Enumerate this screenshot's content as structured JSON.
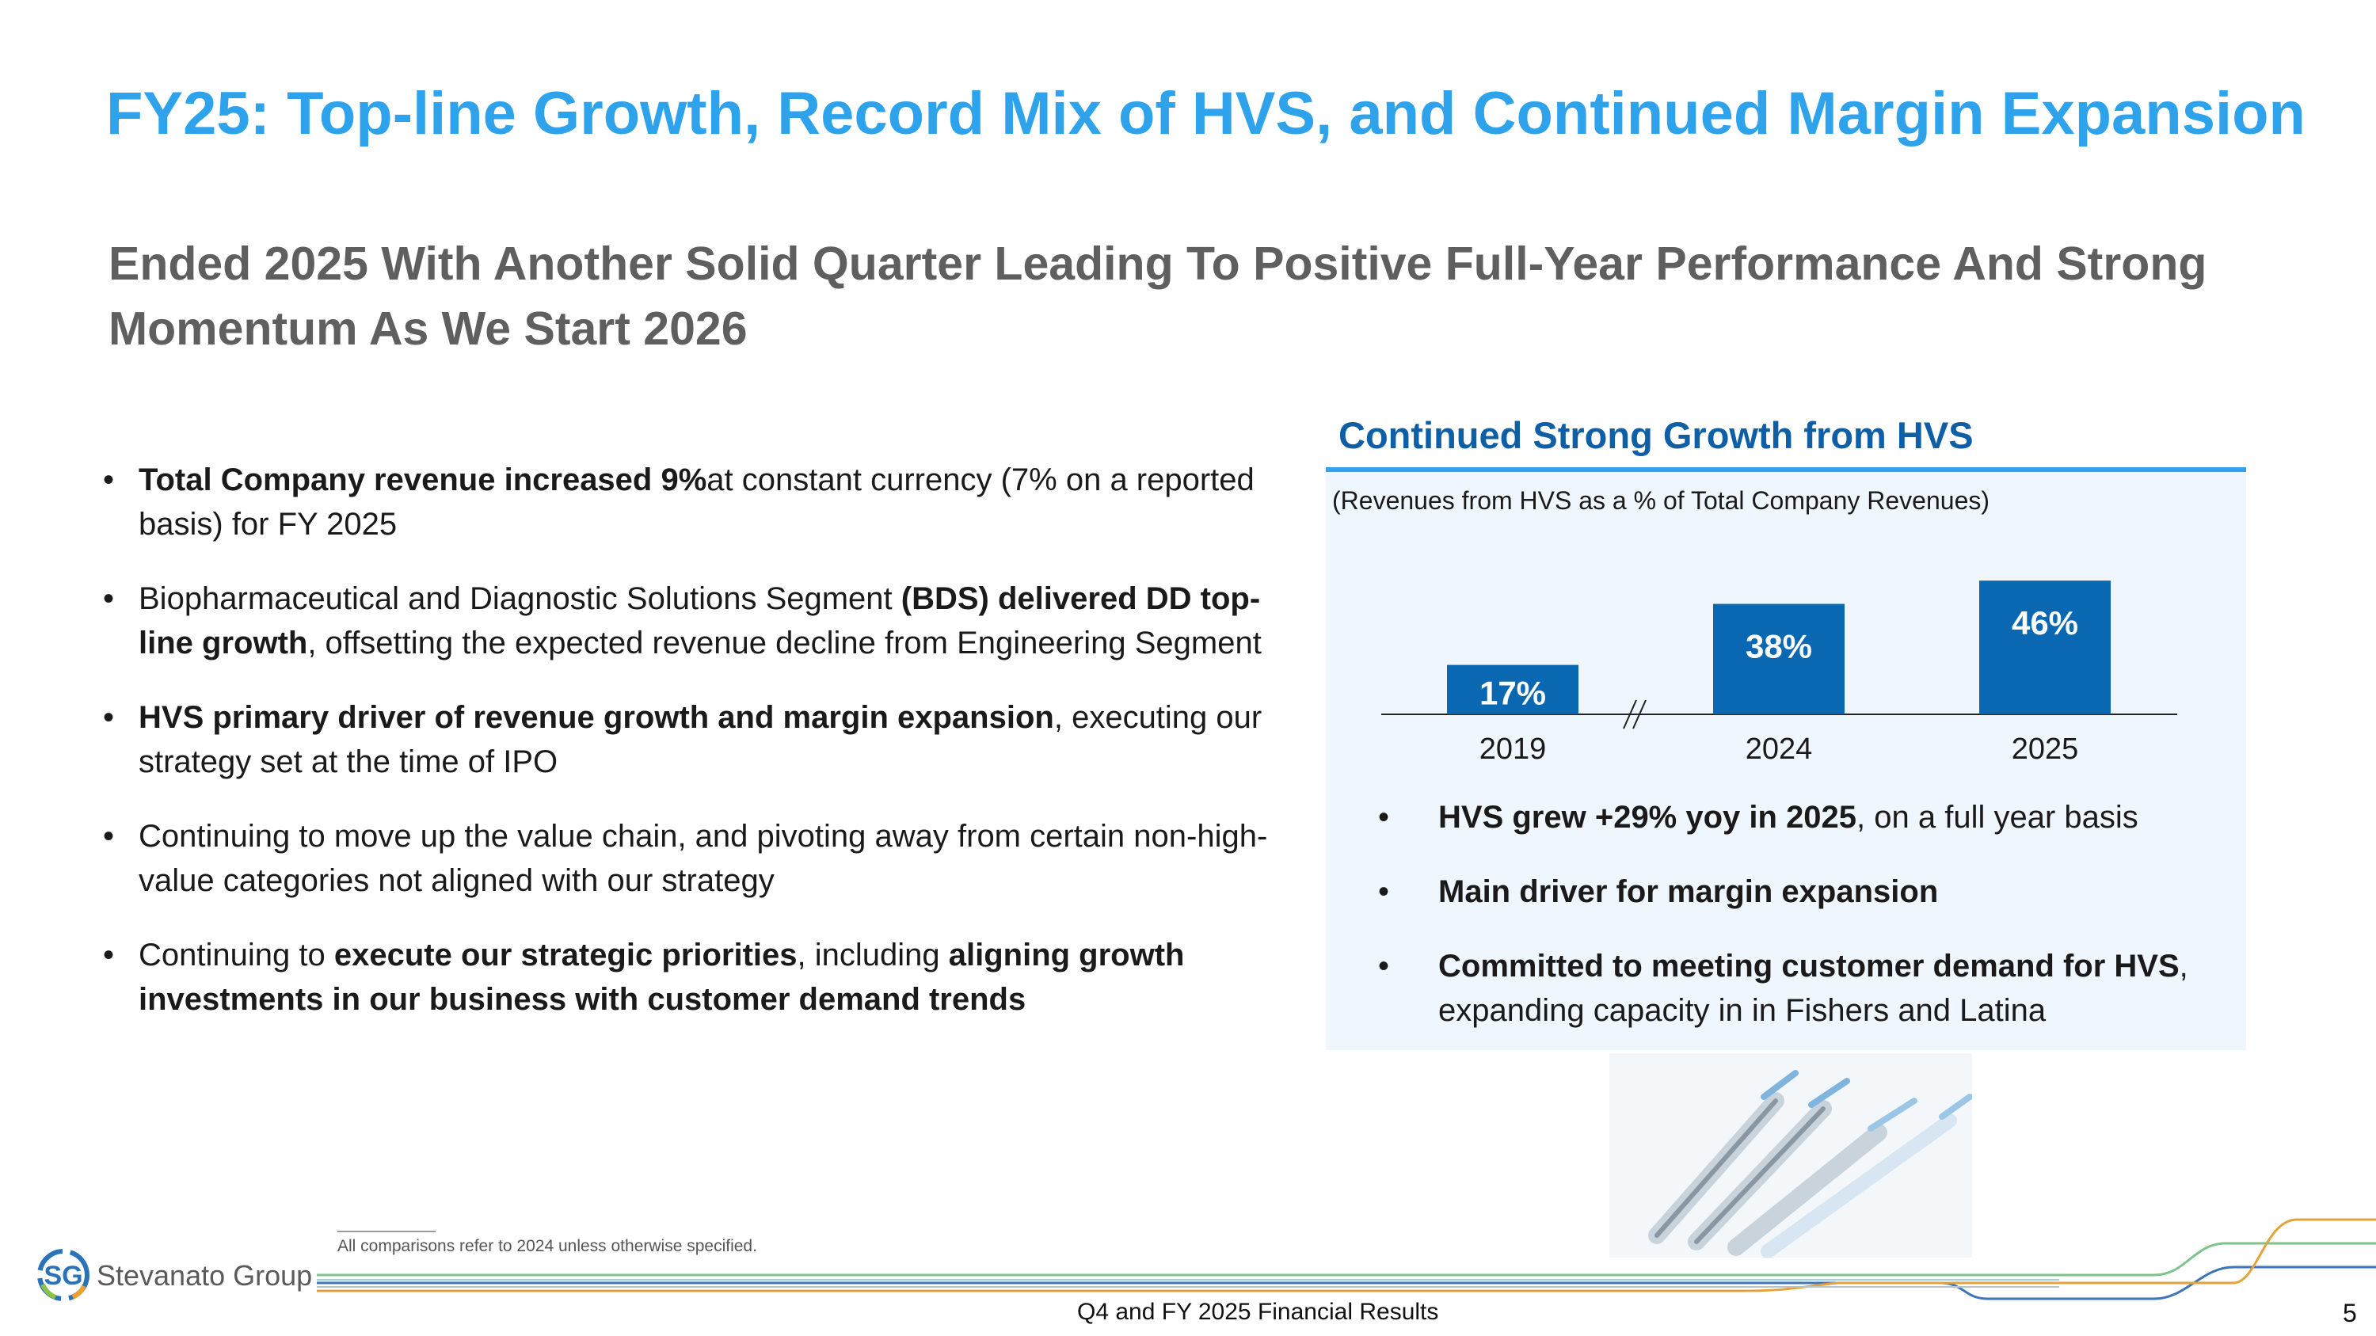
{
  "slide": {
    "title": "FY25: Top-line Growth, Record Mix of HVS, and Continued Margin Expansion",
    "subtitle": "Ended 2025 With Another Solid Quarter Leading To Positive Full‑Year Performance And Strong Momentum As We Start 2026"
  },
  "bullets": [
    {
      "b1": "Total Company revenue increased 9%",
      "t1": "at constant currency (7% on a reported basis) for FY 2025"
    },
    {
      "t1": "Biopharmaceutical and Diagnostic Solutions Segment ",
      "b1": "(BDS) delivered DD top-line growth",
      "t2": ", offsetting the expected revenue decline from Engineering Segment"
    },
    {
      "b1": "HVS primary driver of revenue growth and margin expansion",
      "t1": ", executing our strategy set at the time of IPO"
    },
    {
      "t1": "Continuing to move up the value chain, and pivoting away from certain non-high-value categories not aligned with our strategy"
    },
    {
      "t1": "Continuing to ",
      "b1": "execute our strategic priorities",
      "t2": ", including ",
      "b2": "aligning growth investments in our business with customer demand trends"
    }
  ],
  "panel": {
    "title": "Continued Strong Growth from HVS",
    "caption": "(Revenues from HVS as a % of Total Company Revenues)",
    "bullets": [
      {
        "b1": "HVS grew +29% yoy in 2025",
        "t1": ", on a full year basis"
      },
      {
        "b1": "Main driver for margin expansion"
      },
      {
        "b1": "Committed to meeting customer demand for HVS",
        "t1": ", expanding capacity in in Fishers and Latina"
      }
    ]
  },
  "chart_data": {
    "type": "bar",
    "categories": [
      "2019",
      "2024",
      "2025"
    ],
    "values": [
      17,
      38,
      46
    ],
    "value_labels": [
      "17%",
      "38%",
      "46%"
    ],
    "bar_color": "#0a67b2",
    "axis_break_between": [
      "2019",
      "2024"
    ]
  },
  "footer": {
    "footnote": "All comparisons refer to 2024 unless otherwise specified.",
    "text": "Q4 and FY 2025 Financial Results",
    "page": "5",
    "logo_mark": "SG",
    "logo_name": "Stevanato Group"
  },
  "colors": {
    "title": "#2ea3ec",
    "panel_title": "#0f5fa6",
    "panel_bg": "#eff6fd"
  }
}
